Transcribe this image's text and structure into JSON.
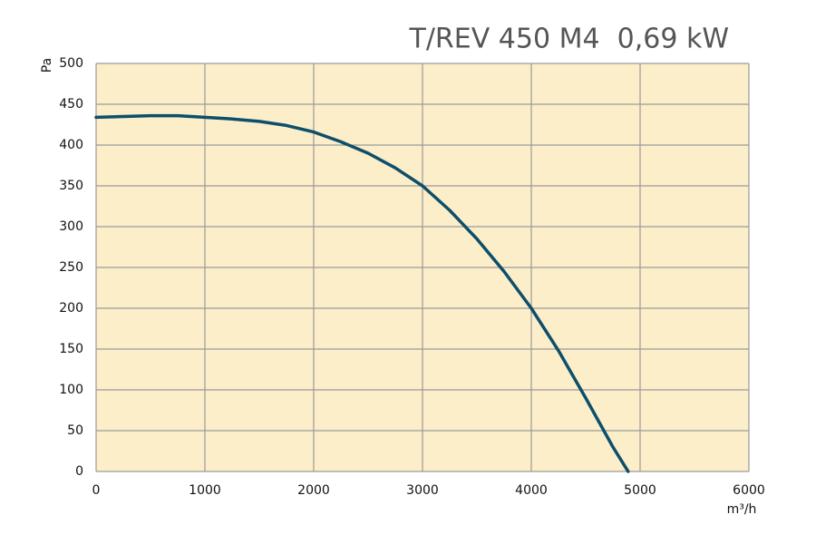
{
  "chart_data": {
    "type": "line",
    "title": "T/REV 450 M4  0,69 kW",
    "x_label": "m³/h",
    "y_label": "Pa",
    "x": [
      0,
      250,
      500,
      750,
      1000,
      1250,
      1500,
      1750,
      2000,
      2250,
      2500,
      2750,
      3000,
      3250,
      3500,
      3750,
      4000,
      4250,
      4500,
      4750,
      4890
    ],
    "series": [
      {
        "color": "#0d4f6b",
        "values": [
          434,
          435,
          436,
          436,
          434,
          432,
          429,
          424,
          416,
          404,
          390,
          372,
          350,
          320,
          285,
          245,
          200,
          148,
          90,
          30,
          0
        ]
      }
    ],
    "xlim": [
      0,
      6000
    ],
    "xticks": [
      0,
      1000,
      2000,
      3000,
      4000,
      5000,
      6000
    ],
    "ylim": [
      0,
      500
    ],
    "yticks": [
      0,
      50,
      100,
      150,
      200,
      250,
      300,
      350,
      400,
      450,
      500
    ],
    "grid": true,
    "background": "#fdeeca"
  }
}
